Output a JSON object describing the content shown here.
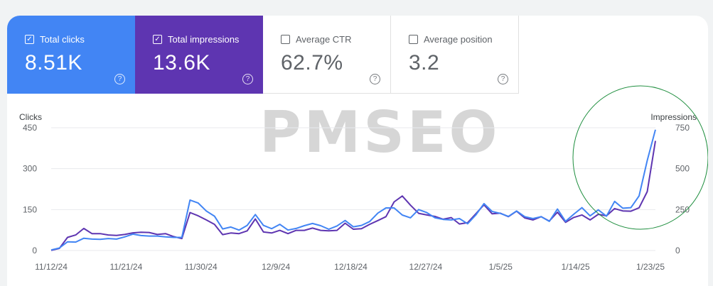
{
  "metrics": [
    {
      "label": "Total clicks",
      "value": "8.51K",
      "checked": true
    },
    {
      "label": "Total impressions",
      "value": "13.6K",
      "checked": true
    },
    {
      "label": "Average CTR",
      "value": "62.7%",
      "checked": false
    },
    {
      "label": "Average position",
      "value": "3.2",
      "checked": false
    }
  ],
  "watermark": "PMSEO",
  "colors": {
    "clicks": "#4285f4",
    "impressions": "#5e35b1",
    "highlight": "#1e8e3e"
  },
  "chart_data": {
    "type": "line",
    "left_axis_label": "Clicks",
    "right_axis_label": "Impressions",
    "left_ticks": [
      "450",
      "300",
      "150",
      "0"
    ],
    "right_ticks": [
      "750",
      "500",
      "250",
      "0"
    ],
    "ylim_left": [
      0,
      450
    ],
    "ylim_right": [
      0,
      750
    ],
    "x_tick_labels": [
      "11/12/24",
      "11/21/24",
      "11/30/24",
      "12/9/24",
      "12/18/24",
      "12/27/24",
      "1/5/25",
      "1/14/25",
      "1/23/25"
    ],
    "series": [
      {
        "name": "Clicks",
        "axis": "left",
        "values": [
          2,
          9,
          32,
          31,
          45,
          42,
          41,
          44,
          42,
          50,
          60,
          55,
          53,
          53,
          50,
          48,
          48,
          185,
          174,
          145,
          126,
          79,
          86,
          75,
          92,
          132,
          92,
          80,
          96,
          75,
          81,
          91,
          99,
          91,
          78,
          90,
          110,
          87,
          92,
          106,
          137,
          156,
          156,
          130,
          120,
          150,
          139,
          120,
          114,
          112,
          117,
          98,
          130,
          172,
          143,
          136,
          125,
          145,
          124,
          117,
          124,
          107,
          152,
          107,
          133,
          157,
          127,
          149,
          126,
          180,
          155,
          157,
          200,
          330,
          443
        ]
      },
      {
        "name": "Impressions",
        "axis": "right",
        "values": [
          1,
          13,
          80,
          95,
          135,
          103,
          103,
          95,
          92,
          98,
          108,
          112,
          110,
          98,
          103,
          85,
          73,
          232,
          212,
          187,
          160,
          97,
          107,
          103,
          120,
          193,
          113,
          107,
          123,
          103,
          123,
          123,
          137,
          123,
          120,
          123,
          167,
          130,
          133,
          160,
          183,
          207,
          297,
          333,
          277,
          227,
          217,
          208,
          191,
          201,
          162,
          170,
          224,
          279,
          224,
          228,
          207,
          240,
          199,
          187,
          207,
          180,
          234,
          172,
          202,
          217,
          187,
          221,
          212,
          256,
          242,
          240,
          261,
          360,
          670
        ]
      }
    ],
    "highlight": "circle around the final spike (1/21/25 – 1/23/25)"
  }
}
